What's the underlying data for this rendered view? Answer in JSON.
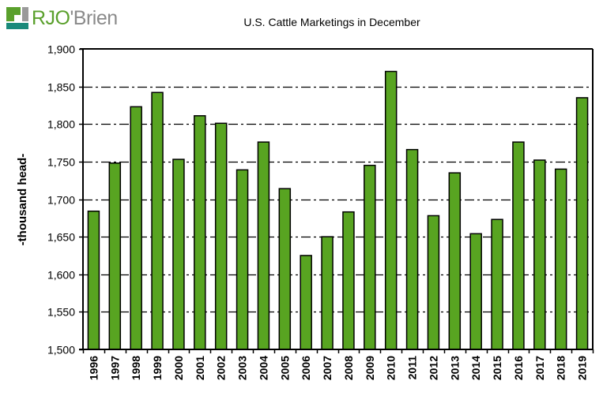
{
  "brand": {
    "logo_text_primary": "RJO",
    "logo_text_secondary": "'Brien",
    "colors": {
      "green": "#5aa02c",
      "gray": "#8a8a8a",
      "teal": "#1a8a7a"
    }
  },
  "chart_data": {
    "type": "bar",
    "title": "U.S. Cattle Marketings in December",
    "xlabel": "",
    "ylabel": "-thousand head-",
    "ylim": [
      1500,
      1900
    ],
    "ytick_values": [
      1500,
      1550,
      1600,
      1650,
      1700,
      1750,
      1800,
      1850,
      1900
    ],
    "ytick_labels": [
      "1,500",
      "1,550",
      "1,600",
      "1,650",
      "1,700",
      "1,750",
      "1,800",
      "1,850",
      "1,900"
    ],
    "grid": true,
    "grid_style": "dash-dot",
    "legend": "none",
    "bar_color": "#58a421",
    "categories": [
      "1996",
      "1997",
      "1998",
      "1999",
      "2000",
      "2001",
      "2002",
      "2003",
      "2004",
      "2005",
      "2006",
      "2007",
      "2008",
      "2009",
      "2010",
      "2011",
      "2012",
      "2013",
      "2014",
      "2015",
      "2016",
      "2017",
      "2018",
      "2019"
    ],
    "values": [
      1684,
      1748,
      1823,
      1842,
      1753,
      1811,
      1801,
      1739,
      1776,
      1714,
      1625,
      1650,
      1683,
      1745,
      1870,
      1766,
      1678,
      1735,
      1654,
      1673,
      1776,
      1752,
      1740,
      1835
    ]
  }
}
